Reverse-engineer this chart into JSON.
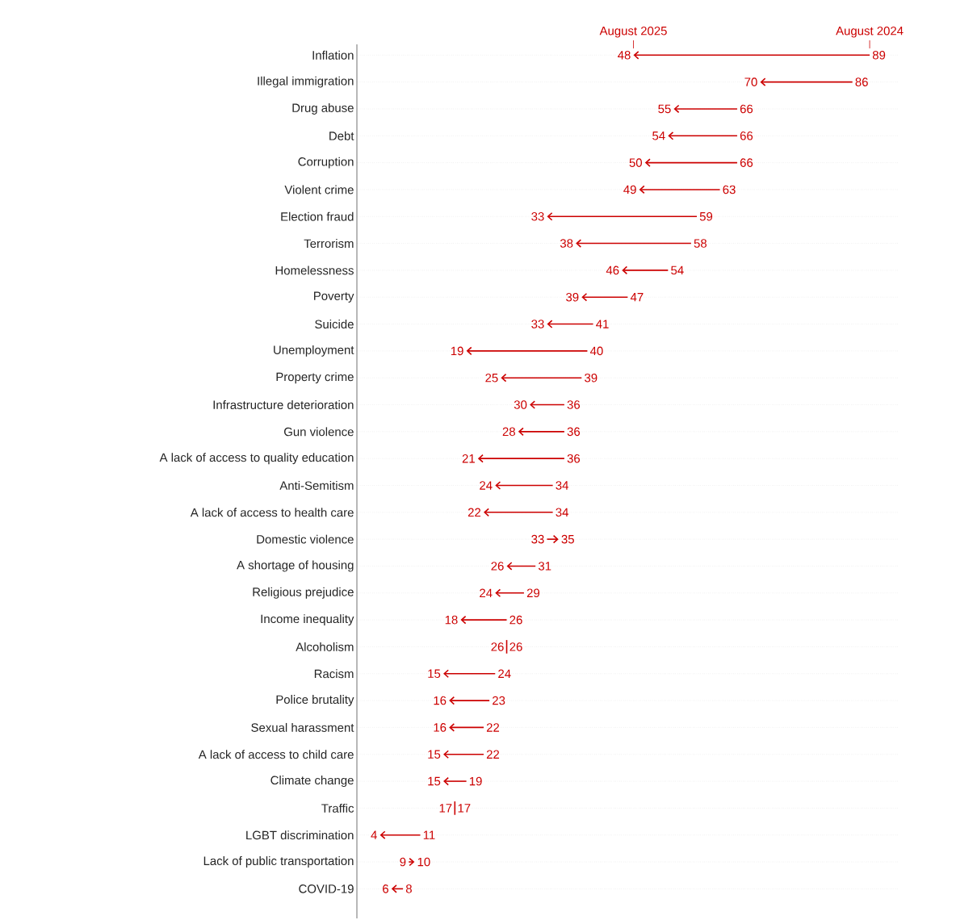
{
  "chart_data": {
    "type": "other",
    "categories": [
      "Inflation",
      "Illegal immigration",
      "Drug abuse",
      "Debt",
      "Corruption",
      "Violent crime",
      "Election fraud",
      "Terrorism",
      "Homelessness",
      "Poverty",
      "Suicide",
      "Unemployment",
      "Property crime",
      "Infrastructure deterioration",
      "Gun violence",
      "A lack of access to quality education",
      "Anti-Semitism",
      "A lack of access to health care",
      "Domestic violence",
      "A shortage of housing",
      "Religious prejudice",
      "Income inequality",
      "Alcoholism",
      "Racism",
      "Police brutality",
      "Sexual harassment",
      "A lack of access to child care",
      "Climate change",
      "Traffic",
      "LGBT discrimination",
      "Lack of public transportation",
      "COVID-19"
    ],
    "series": [
      {
        "name": "August 2025",
        "color": "#cc0000",
        "values": [
          48,
          70,
          55,
          54,
          50,
          49,
          33,
          38,
          46,
          39,
          33,
          19,
          25,
          30,
          28,
          21,
          24,
          22,
          35,
          26,
          24,
          18,
          26,
          15,
          16,
          16,
          15,
          15,
          17,
          4,
          10,
          6
        ]
      },
      {
        "name": "August 2024",
        "color": "#cc0000",
        "values": [
          89,
          86,
          66,
          66,
          66,
          63,
          59,
          58,
          54,
          47,
          41,
          40,
          39,
          36,
          36,
          36,
          34,
          34,
          33,
          31,
          29,
          26,
          26,
          24,
          23,
          22,
          22,
          19,
          17,
          11,
          9,
          8
        ]
      }
    ],
    "data_labels": true
  }
}
